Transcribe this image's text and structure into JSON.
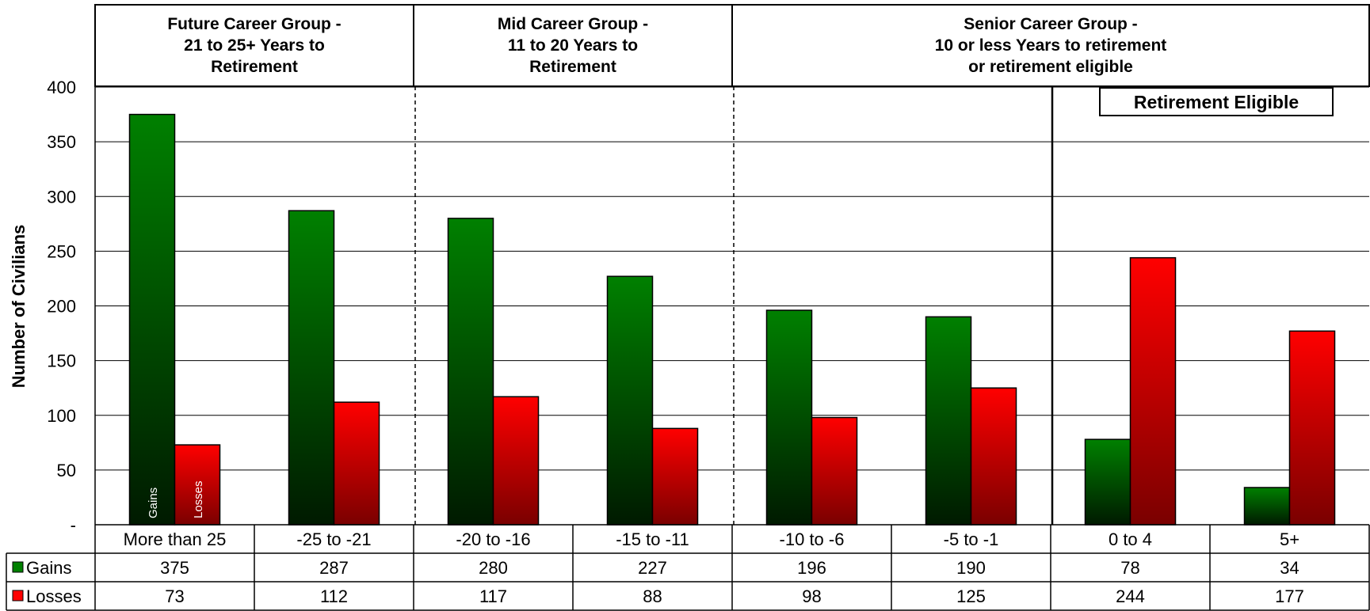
{
  "chart_data": {
    "type": "bar",
    "ylabel": "Number of Civilians",
    "ylim": [
      0,
      400
    ],
    "y_ticks": [
      "-",
      "50",
      "100",
      "150",
      "200",
      "250",
      "300",
      "350",
      "400"
    ],
    "categories": [
      "More than 25",
      "-25 to -21",
      "-20 to -16",
      "-15 to -11",
      "-10 to -6",
      "-5 to -1",
      "0 to 4",
      "5+"
    ],
    "series": [
      {
        "name": "Gains",
        "values": [
          375,
          287,
          280,
          227,
          196,
          190,
          78,
          34
        ],
        "color_top": "#008000",
        "color_bottom": "#001a00"
      },
      {
        "name": "Losses",
        "values": [
          73,
          112,
          117,
          88,
          98,
          125,
          244,
          177
        ],
        "color_top": "#ff0000",
        "color_bottom": "#7a0000"
      }
    ],
    "bar_labels": {
      "gains": "Gains",
      "losses": "Losses"
    },
    "groups": [
      {
        "lines": [
          "Future Career Group -",
          "21 to 25+ Years to",
          "Retirement"
        ],
        "span": [
          0,
          2
        ]
      },
      {
        "lines": [
          "Mid Career Group -",
          "11 to 20 Years to",
          "Retirement"
        ],
        "span": [
          2,
          4
        ]
      },
      {
        "lines": [
          "Senior Career Group -",
          "10 or less Years to retirement",
          "or retirement eligible"
        ],
        "span": [
          4,
          8
        ]
      }
    ],
    "retirement_eligible_label": "Retirement Eligible",
    "retirement_eligible_start": 6,
    "grid": true,
    "legend": "data-table"
  }
}
